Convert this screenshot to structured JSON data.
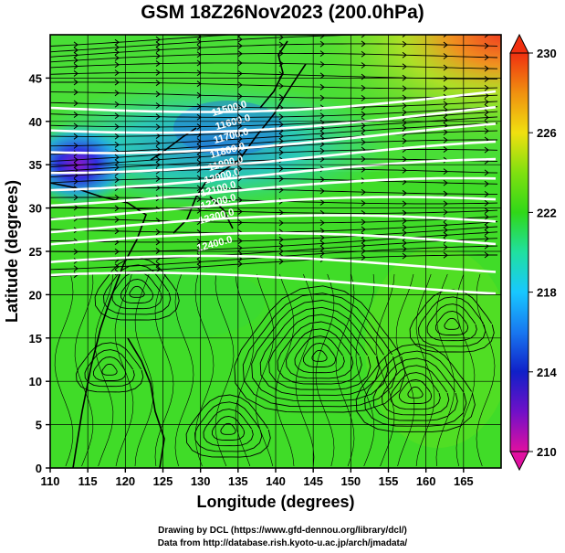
{
  "title": "GSM 18Z26Nov2023 (200.0hPa)",
  "chart_data": {
    "type": "heatmap",
    "title": "GSM 18Z26Nov2023 (200.0hPa)",
    "xlabel": "Longitude (degrees)",
    "ylabel": "Latitude  (degrees)",
    "xlim": [
      110,
      170
    ],
    "ylim": [
      0,
      50
    ],
    "x_ticks": [
      "110",
      "115",
      "120",
      "125",
      "130",
      "135",
      "140",
      "145",
      "150",
      "155",
      "160",
      "165"
    ],
    "y_ticks": [
      "0",
      "5",
      "10",
      "15",
      "20",
      "25",
      "30",
      "35",
      "40",
      "45"
    ],
    "colorbar": {
      "min": 210,
      "max": 230,
      "ticks": [
        "210",
        "214",
        "218",
        "222",
        "226",
        "230"
      ],
      "colors": [
        "#e0109a",
        "#1020c8",
        "#18c8ff",
        "#30d818",
        "#f0e010",
        "#f04010"
      ]
    },
    "contour_labels": [
      "11500.0",
      "11600.0",
      "11700.0",
      "11800.0",
      "11900.0",
      "12000.0",
      "12100.0",
      "12200.0",
      "12300.0",
      "12400.0"
    ],
    "grid": true
  },
  "credits": {
    "line1": "Drawing by DCL (https://www.gfd-dennou.org/library/dcl/)",
    "line2": "Data from http://database.rish.kyoto-u.ac.jp/arch/jmadata/"
  }
}
